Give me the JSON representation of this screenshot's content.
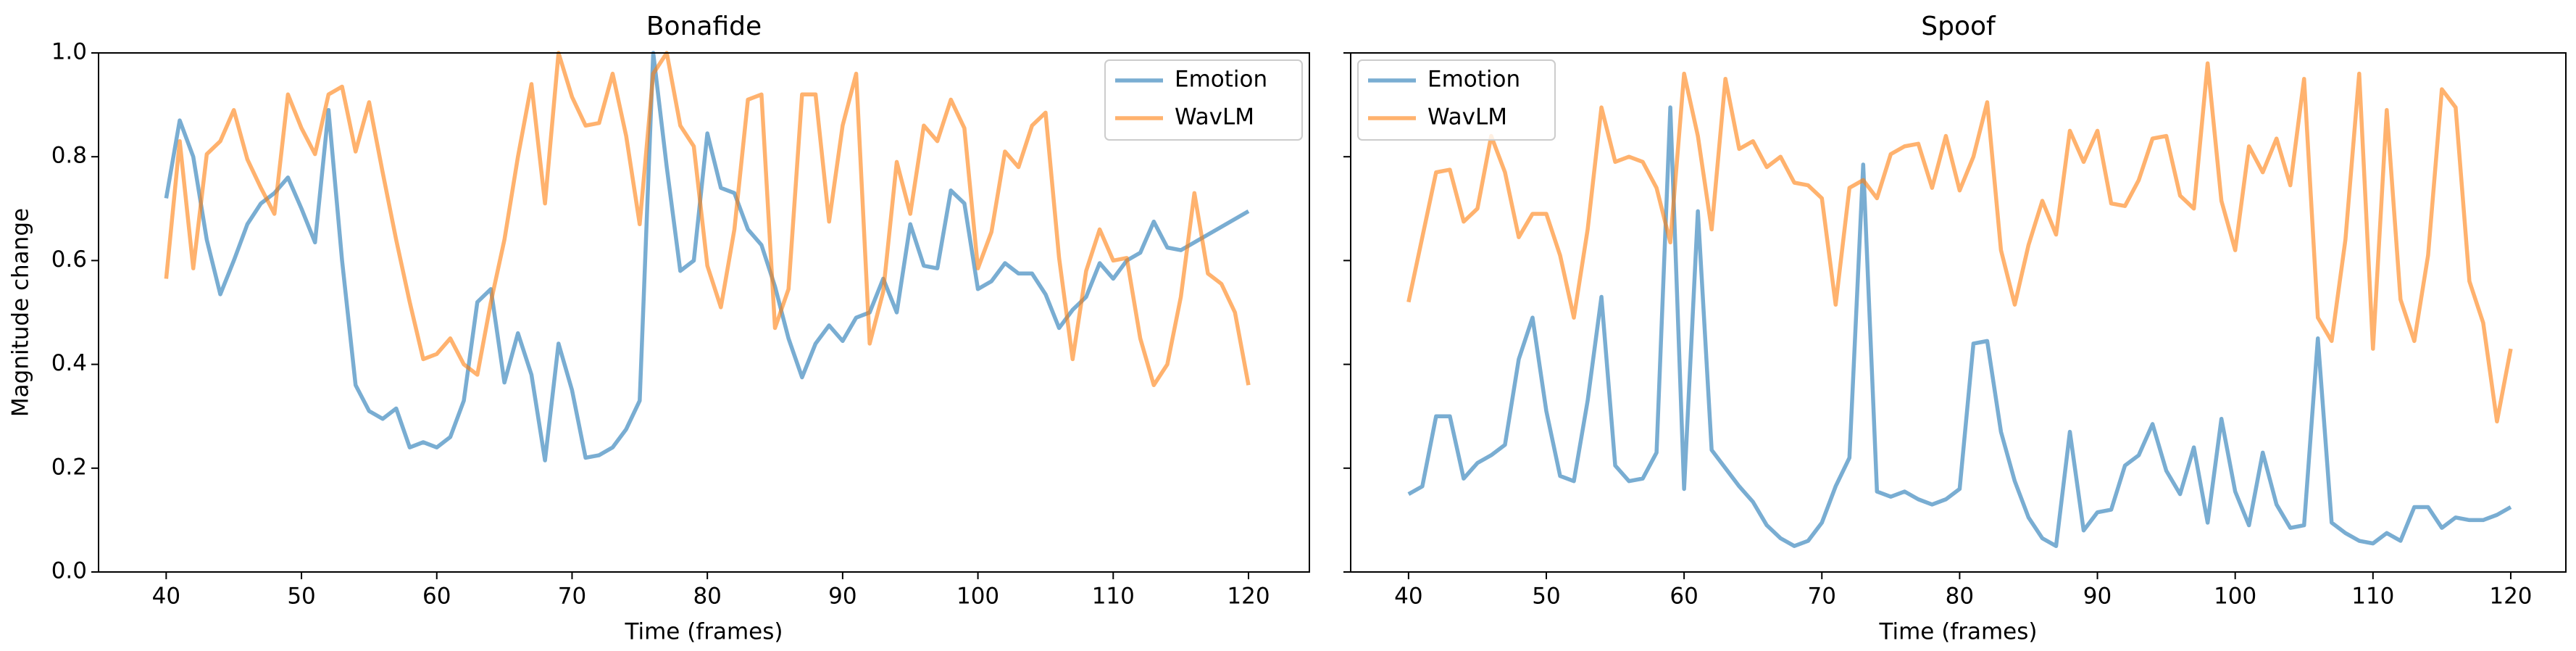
{
  "chart_data": [
    {
      "type": "line",
      "title": "Bonafide",
      "xlabel": "Time (frames)",
      "ylabel": "Magnitude change",
      "legend": "upper right",
      "grid": false,
      "x": [
        40,
        41,
        42,
        43,
        44,
        45,
        46,
        47,
        48,
        49,
        50,
        51,
        52,
        53,
        54,
        55,
        56,
        57,
        58,
        59,
        60,
        61,
        62,
        63,
        64,
        65,
        66,
        67,
        68,
        69,
        70,
        71,
        72,
        73,
        74,
        75,
        76,
        77,
        78,
        79,
        80,
        81,
        82,
        83,
        84,
        85,
        86,
        87,
        88,
        89,
        90,
        91,
        92,
        93,
        94,
        95,
        96,
        97,
        98,
        99,
        100,
        101,
        102,
        103,
        104,
        105,
        106,
        107,
        108,
        109,
        110,
        111,
        112,
        113,
        114,
        115,
        116,
        117,
        118,
        119,
        120
      ],
      "xlim": [
        35,
        124.5
      ],
      "xticks": [
        40,
        50,
        60,
        70,
        80,
        90,
        100,
        110,
        120
      ],
      "ylim": [
        0,
        1
      ],
      "yticks": [
        {
          "value": 0,
          "label": "0.0"
        },
        0.2,
        0.4,
        0.6,
        0.8,
        {
          "value": 1,
          "label": "1.0"
        }
      ],
      "series": [
        {
          "name": "Emotion",
          "color": "#1f77b4",
          "values": [
            0.72,
            0.87,
            0.8,
            0.64,
            0.535,
            0.6,
            0.67,
            0.71,
            0.73,
            0.76,
            0.7,
            0.635,
            0.89,
            0.6,
            0.36,
            0.31,
            0.295,
            0.315,
            0.24,
            0.25,
            0.24,
            0.26,
            0.33,
            0.52,
            0.545,
            0.365,
            0.46,
            0.38,
            0.215,
            0.44,
            0.35,
            0.22,
            0.225,
            0.24,
            0.275,
            0.33,
            1.0,
            0.78,
            0.58,
            0.6,
            0.845,
            0.74,
            0.73,
            0.66,
            0.63,
            0.55,
            0.45,
            0.375,
            0.44,
            0.475,
            0.445,
            0.49,
            0.5,
            0.565,
            0.5,
            0.67,
            0.59,
            0.585,
            0.735,
            0.71,
            0.545,
            0.56,
            0.595,
            0.575,
            0.575,
            0.535,
            0.47,
            0.505,
            0.53,
            0.595,
            0.565,
            0.6,
            0.615,
            0.675,
            0.625,
            0.62,
            0.635,
            0.65,
            0.665,
            0.68,
            0.695
          ]
        },
        {
          "name": "WavLM",
          "color": "#ff7f0e",
          "values": [
            0.565,
            0.83,
            0.585,
            0.805,
            0.83,
            0.89,
            0.795,
            0.74,
            0.69,
            0.92,
            0.855,
            0.805,
            0.92,
            0.935,
            0.81,
            0.905,
            0.77,
            0.64,
            0.52,
            0.41,
            0.42,
            0.45,
            0.4,
            0.38,
            0.52,
            0.64,
            0.8,
            0.94,
            0.71,
            1.0,
            0.915,
            0.86,
            0.865,
            0.96,
            0.84,
            0.67,
            0.96,
            1.0,
            0.86,
            0.82,
            0.59,
            0.51,
            0.66,
            0.91,
            0.92,
            0.47,
            0.545,
            0.92,
            0.92,
            0.675,
            0.86,
            0.96,
            0.44,
            0.54,
            0.79,
            0.69,
            0.86,
            0.83,
            0.91,
            0.855,
            0.585,
            0.655,
            0.81,
            0.78,
            0.86,
            0.885,
            0.605,
            0.41,
            0.58,
            0.66,
            0.6,
            0.605,
            0.45,
            0.36,
            0.4,
            0.53,
            0.73,
            0.575,
            0.555,
            0.5,
            0.36
          ]
        }
      ]
    },
    {
      "type": "line",
      "title": "Spoof",
      "xlabel": "Time (frames)",
      "legend": "upper left",
      "grid": false,
      "x": [
        40,
        41,
        42,
        43,
        44,
        45,
        46,
        47,
        48,
        49,
        50,
        51,
        52,
        53,
        54,
        55,
        56,
        57,
        58,
        59,
        60,
        61,
        62,
        63,
        64,
        65,
        66,
        67,
        68,
        69,
        70,
        71,
        72,
        73,
        74,
        75,
        76,
        77,
        78,
        79,
        80,
        81,
        82,
        83,
        84,
        85,
        86,
        87,
        88,
        89,
        90,
        91,
        92,
        93,
        94,
        95,
        96,
        97,
        98,
        99,
        100,
        101,
        102,
        103,
        104,
        105,
        106,
        107,
        108,
        109,
        110,
        111,
        112,
        113,
        114,
        115,
        116,
        117,
        118,
        119,
        120
      ],
      "xlim": [
        35.8,
        124
      ],
      "xticks": [
        40,
        50,
        60,
        70,
        80,
        90,
        100,
        110,
        120
      ],
      "ylim": [
        0,
        1
      ],
      "yticks": [
        0,
        0.2,
        0.4,
        0.6,
        0.8,
        1
      ],
      "series": [
        {
          "name": "Emotion",
          "color": "#1f77b4",
          "values": [
            0.15,
            0.165,
            0.3,
            0.3,
            0.18,
            0.21,
            0.225,
            0.245,
            0.41,
            0.49,
            0.31,
            0.185,
            0.175,
            0.33,
            0.53,
            0.205,
            0.175,
            0.18,
            0.23,
            0.895,
            0.16,
            0.695,
            0.235,
            0.2,
            0.165,
            0.135,
            0.09,
            0.065,
            0.05,
            0.06,
            0.095,
            0.165,
            0.22,
            0.785,
            0.155,
            0.145,
            0.155,
            0.14,
            0.13,
            0.14,
            0.16,
            0.44,
            0.445,
            0.27,
            0.175,
            0.105,
            0.065,
            0.05,
            0.27,
            0.08,
            0.115,
            0.12,
            0.205,
            0.225,
            0.285,
            0.195,
            0.15,
            0.24,
            0.095,
            0.295,
            0.155,
            0.09,
            0.23,
            0.13,
            0.085,
            0.09,
            0.45,
            0.095,
            0.075,
            0.06,
            0.055,
            0.075,
            0.06,
            0.125,
            0.125,
            0.085,
            0.105,
            0.1,
            0.1,
            0.11,
            0.125
          ]
        },
        {
          "name": "WavLM",
          "color": "#ff7f0e",
          "values": [
            0.52,
            0.645,
            0.77,
            0.775,
            0.675,
            0.7,
            0.84,
            0.77,
            0.645,
            0.69,
            0.69,
            0.61,
            0.49,
            0.66,
            0.895,
            0.79,
            0.8,
            0.79,
            0.74,
            0.635,
            0.96,
            0.84,
            0.66,
            0.95,
            0.815,
            0.83,
            0.78,
            0.8,
            0.75,
            0.745,
            0.72,
            0.515,
            0.74,
            0.755,
            0.72,
            0.805,
            0.82,
            0.825,
            0.74,
            0.84,
            0.735,
            0.8,
            0.905,
            0.62,
            0.515,
            0.63,
            0.715,
            0.65,
            0.85,
            0.79,
            0.85,
            0.71,
            0.705,
            0.755,
            0.835,
            0.84,
            0.725,
            0.7,
            0.98,
            0.715,
            0.62,
            0.82,
            0.77,
            0.835,
            0.745,
            0.95,
            0.49,
            0.445,
            0.64,
            0.96,
            0.43,
            0.89,
            0.525,
            0.445,
            0.61,
            0.93,
            0.895,
            0.56,
            0.48,
            0.29,
            0.43
          ]
        }
      ]
    }
  ]
}
